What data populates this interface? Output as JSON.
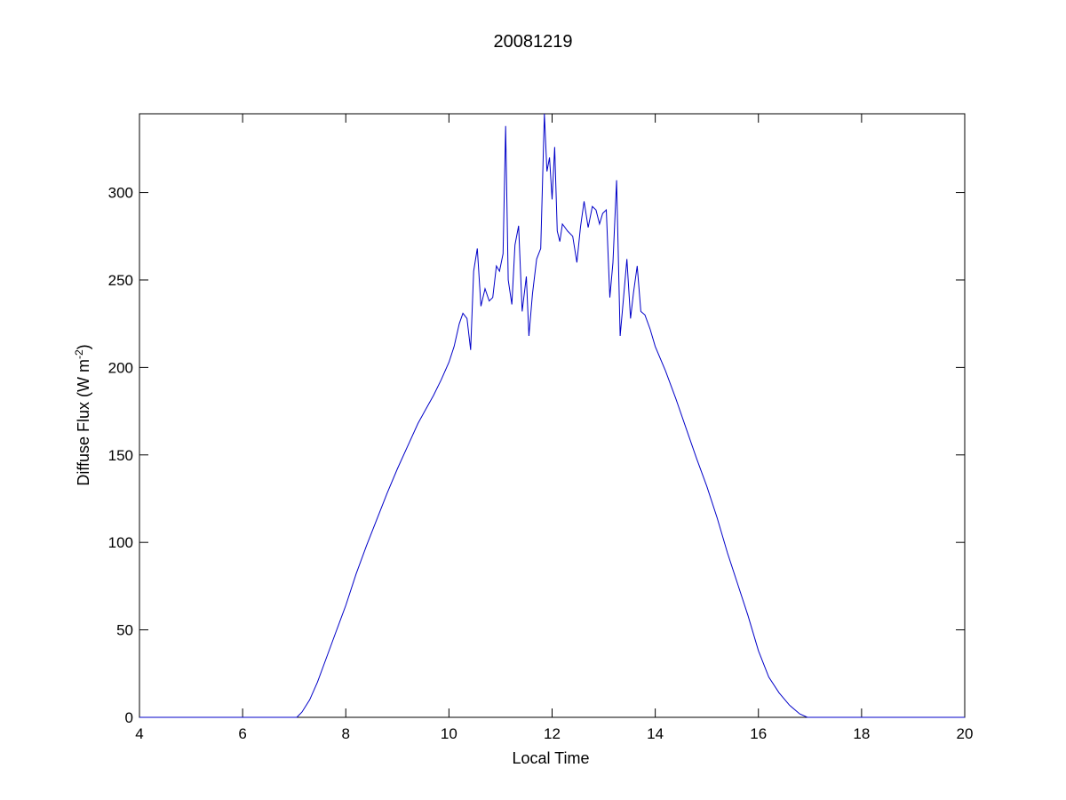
{
  "chart_data": {
    "type": "line",
    "title": "20081219",
    "xlabel": "Local Time",
    "ylabel_parts": [
      "Diffuse Flux (W m",
      "-2",
      ")"
    ],
    "xlim": [
      4,
      20
    ],
    "ylim": [
      0,
      345
    ],
    "xticks": [
      4,
      6,
      8,
      10,
      12,
      14,
      16,
      18,
      20
    ],
    "yticks": [
      0,
      50,
      100,
      150,
      200,
      250,
      300
    ],
    "grid": false,
    "line_color": "#0000c8",
    "series": [
      {
        "x": [
          4.0,
          7.05,
          7.15,
          7.3,
          7.45,
          7.6,
          7.8,
          8.0,
          8.2,
          8.4,
          8.6,
          8.8,
          9.0,
          9.2,
          9.4,
          9.55,
          9.7,
          9.85,
          10.0,
          10.1,
          10.2,
          10.27,
          10.35,
          10.42,
          10.48,
          10.55,
          10.62,
          10.7,
          10.78,
          10.85,
          10.92,
          10.98,
          11.05,
          11.1,
          11.15,
          11.22,
          11.28,
          11.35,
          11.42,
          11.5,
          11.55,
          11.62,
          11.7,
          11.78,
          11.85,
          11.9,
          11.95,
          12.0,
          12.05,
          12.1,
          12.15,
          12.2,
          12.3,
          12.4,
          12.48,
          12.55,
          12.62,
          12.7,
          12.78,
          12.85,
          12.92,
          12.98,
          13.05,
          13.12,
          13.18,
          13.25,
          13.32,
          13.38,
          13.45,
          13.52,
          13.58,
          13.65,
          13.72,
          13.8,
          13.9,
          14.0,
          14.2,
          14.4,
          14.6,
          14.8,
          15.0,
          15.2,
          15.4,
          15.6,
          15.8,
          16.0,
          16.2,
          16.4,
          16.6,
          16.8,
          16.95,
          17.05,
          17.1,
          20.0
        ],
        "y": [
          0,
          0,
          3,
          10,
          20,
          32,
          48,
          64,
          82,
          98,
          113,
          128,
          142,
          155,
          168,
          176,
          184,
          193,
          203,
          212,
          225,
          231,
          228,
          210,
          255,
          268,
          235,
          245,
          238,
          240,
          258,
          255,
          265,
          338,
          250,
          236,
          270,
          281,
          232,
          252,
          218,
          242,
          262,
          268,
          345,
          312,
          320,
          296,
          326,
          278,
          272,
          282,
          278,
          275,
          260,
          280,
          295,
          280,
          292,
          290,
          282,
          288,
          290,
          240,
          260,
          307,
          218,
          238,
          262,
          228,
          243,
          258,
          232,
          230,
          222,
          212,
          198,
          182,
          165,
          148,
          132,
          114,
          94,
          76,
          58,
          38,
          23,
          14,
          7,
          2,
          0,
          0,
          0,
          0
        ]
      }
    ]
  }
}
